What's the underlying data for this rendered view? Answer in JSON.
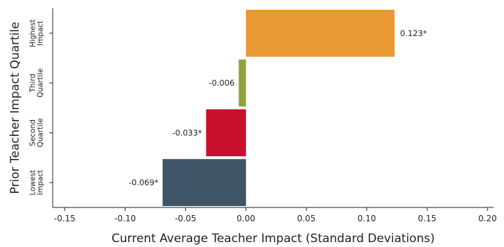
{
  "chart_data": {
    "type": "bar",
    "orientation": "horizontal",
    "xlabel": "Current Average Teacher Impact (Standard Deviations)",
    "ylabel": "Prior Teacher Impact Quartile",
    "xlim": [
      -0.16,
      0.205
    ],
    "x_ticks": [
      -0.15,
      -0.1,
      -0.05,
      0.0,
      0.05,
      0.1,
      0.15,
      0.2
    ],
    "x_tick_labels": [
      "-0.15",
      "-0.10",
      "-0.05",
      "0.00",
      "0.05",
      "0.10",
      "0.15",
      "0.20"
    ],
    "grid": false,
    "categories": [
      {
        "lines": [
          "Highest",
          "Impact"
        ],
        "value": 0.123,
        "label": "0.123*",
        "color": "#E99A33",
        "bar_scale": 1.0
      },
      {
        "lines": [
          "Third",
          "Quartile"
        ],
        "value": -0.006,
        "label": "-0.006",
        "color": "#8FA33A",
        "bar_scale": 1.0
      },
      {
        "lines": [
          "Second",
          "Quartile"
        ],
        "value": -0.033,
        "label": "-0.033*",
        "color": "#C8102E",
        "bar_scale": 1.0
      },
      {
        "lines": [
          "Lowest",
          "Impact"
        ],
        "value": -0.069,
        "label": "-0.069*",
        "color": "#3D5566",
        "bar_scale": 1.0
      }
    ]
  }
}
